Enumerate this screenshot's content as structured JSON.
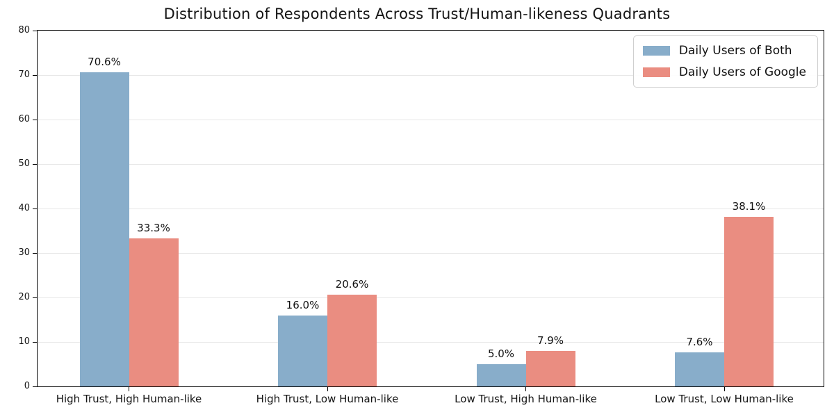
{
  "chart_data": {
    "type": "bar",
    "title": "Distribution of Respondents Across Trust/Human-likeness Quadrants",
    "categories": [
      "High Trust, High Human-like",
      "High Trust, Low Human-like",
      "Low Trust, High Human-like",
      "Low Trust, Low Human-like"
    ],
    "series": [
      {
        "name": "Daily Users of Both",
        "color": "#88adca",
        "values": [
          70.6,
          16.0,
          5.0,
          7.6
        ]
      },
      {
        "name": "Daily Users of Google",
        "color": "#ea8d81",
        "values": [
          33.3,
          20.6,
          7.9,
          38.1
        ]
      }
    ],
    "value_label_suffix": "%",
    "value_label_decimals": 1,
    "xlabel": "",
    "ylabel": "",
    "ylim": [
      0,
      80
    ],
    "yticks": [
      0,
      10,
      20,
      30,
      40,
      50,
      60,
      70,
      80
    ],
    "grid": "horizontal",
    "gridline_color": "#e7e7e7",
    "legend_position": "top-right"
  }
}
